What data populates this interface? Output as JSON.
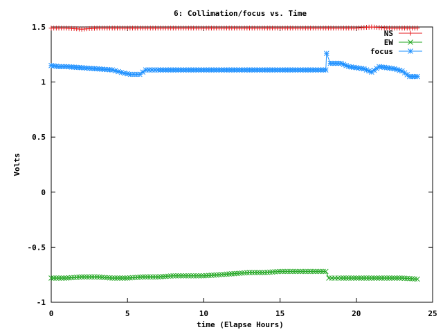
{
  "chart_data": {
    "type": "line",
    "title": "6: Collimation/focus vs. Time",
    "xlabel": "time (Elapse Hours)",
    "ylabel": "Volts",
    "xlim": [
      0,
      25
    ],
    "ylim": [
      -1,
      1.5
    ],
    "x_ticks": [
      0,
      5,
      10,
      15,
      20,
      25
    ],
    "x_tick_labels": [
      "0",
      "5",
      "10",
      "15",
      "20",
      "25"
    ],
    "y_ticks": [
      -1,
      -0.5,
      0,
      0.5,
      1,
      1.5
    ],
    "y_tick_labels": [
      "-1",
      "-0.5",
      "0",
      "0.5",
      "1",
      "1.5"
    ],
    "grid": false,
    "legend_position": "top-right",
    "series": [
      {
        "name": "NS",
        "color": "#e41a1c",
        "marker": "plus",
        "x": [
          0,
          1,
          2,
          3,
          4,
          5,
          6,
          7,
          8,
          9,
          10,
          11,
          12,
          13,
          14,
          15,
          16,
          17,
          18,
          19,
          20,
          21,
          22,
          23,
          24
        ],
        "y": [
          1.49,
          1.49,
          1.48,
          1.49,
          1.49,
          1.49,
          1.49,
          1.49,
          1.49,
          1.49,
          1.49,
          1.49,
          1.49,
          1.49,
          1.49,
          1.49,
          1.49,
          1.49,
          1.49,
          1.49,
          1.49,
          1.5,
          1.49,
          1.49,
          1.49
        ]
      },
      {
        "name": "EW",
        "color": "#1fa51f",
        "marker": "cross",
        "x": [
          0,
          1,
          2,
          3,
          4,
          5,
          6,
          7,
          8,
          9,
          10,
          11,
          12,
          13,
          14,
          15,
          16,
          17,
          18,
          18.2,
          19,
          20,
          21,
          22,
          23,
          24
        ],
        "y": [
          -0.78,
          -0.78,
          -0.77,
          -0.77,
          -0.78,
          -0.78,
          -0.77,
          -0.77,
          -0.76,
          -0.76,
          -0.76,
          -0.75,
          -0.74,
          -0.73,
          -0.73,
          -0.72,
          -0.72,
          -0.72,
          -0.72,
          -0.78,
          -0.78,
          -0.78,
          -0.78,
          -0.78,
          -0.78,
          -0.79
        ]
      },
      {
        "name": "focus",
        "color": "#1e90ff",
        "marker": "star",
        "x": [
          0,
          0.5,
          1,
          2,
          3,
          4,
          4.8,
          5.2,
          5.8,
          6.2,
          7,
          8,
          9,
          10,
          11,
          12,
          13,
          14,
          15,
          16,
          17,
          18,
          18.05,
          18.3,
          19,
          19.5,
          20,
          20.5,
          21,
          21.5,
          22,
          22.5,
          23,
          23.5,
          24
        ],
        "y": [
          1.15,
          1.14,
          1.14,
          1.13,
          1.12,
          1.11,
          1.08,
          1.07,
          1.07,
          1.11,
          1.11,
          1.11,
          1.11,
          1.11,
          1.11,
          1.11,
          1.11,
          1.11,
          1.11,
          1.11,
          1.11,
          1.11,
          1.26,
          1.17,
          1.17,
          1.14,
          1.13,
          1.12,
          1.09,
          1.14,
          1.13,
          1.12,
          1.1,
          1.05,
          1.05
        ]
      }
    ]
  }
}
